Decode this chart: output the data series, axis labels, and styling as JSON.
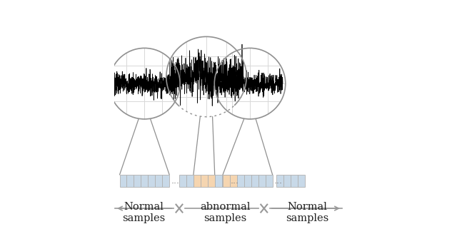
{
  "fig_width": 6.4,
  "fig_height": 3.21,
  "dpi": 100,
  "bg_color": "#ffffff",
  "normal_tile_color": "#c8d9e8",
  "abnormal_tile_color": "#f5d5b0",
  "tile_edge_color": "#b0b0b0",
  "grid_color": "#d8d8d8",
  "signal_color": "#000000",
  "circle_line_color": "#909090",
  "connector_color": "#909090",
  "label_normal_left": "Normal\nsamples",
  "label_abnormal": "abnormal\nsamples",
  "label_normal_right": "Normal\nsamples",
  "label_fontsize": 10.5,
  "arrow_color": "#999999",
  "cross_color": "#999999"
}
